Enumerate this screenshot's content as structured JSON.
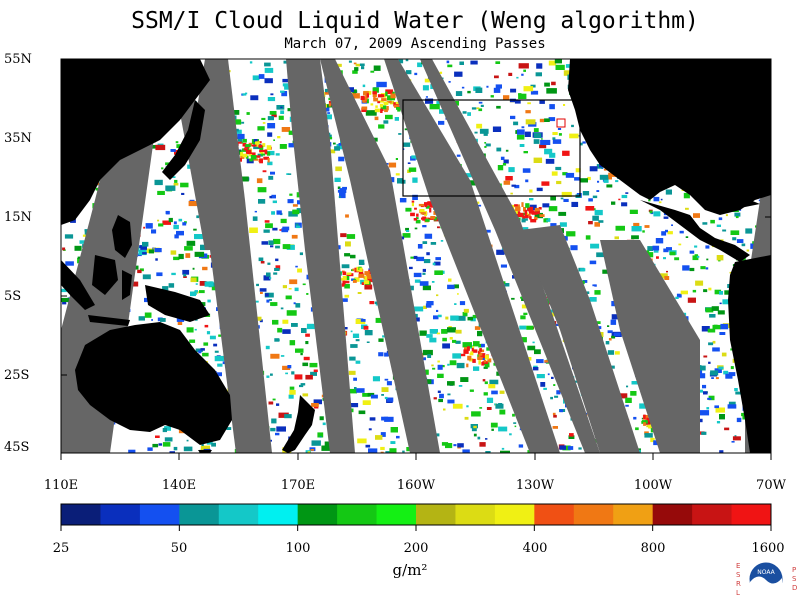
{
  "title": "SSM/I Cloud Liquid Water (Weng algorithm)",
  "subtitle": "March 07, 2009  Ascending Passes",
  "lat_labels": [
    "55N",
    "35N",
    "15N",
    "5S",
    "25S",
    "45S"
  ],
  "lon_labels": [
    "110E",
    "140E",
    "170E",
    "160W",
    "130W",
    "100W",
    "70W"
  ],
  "colorbar": {
    "colors": [
      "#0a1e78",
      "#0a2fbd",
      "#1450f0",
      "#0a9696",
      "#14c8c8",
      "#00f0f0",
      "#009614",
      "#14c814",
      "#14f014",
      "#b4b414",
      "#dcdc14",
      "#f0f014",
      "#f05014",
      "#f07814",
      "#f0a014",
      "#960a0a",
      "#c81414",
      "#f01414"
    ],
    "tick_labels": [
      "25",
      "50",
      "100",
      "200",
      "400",
      "800",
      "1600"
    ],
    "units": "g/m²"
  },
  "logo": {
    "left_text": "ESRL",
    "right_text": "PSD",
    "center_text": "NOAA"
  },
  "colors": {
    "land": "#000000",
    "swath_gap": "#666666",
    "no_cloud": "#ffffff",
    "box": "#000000",
    "marker": "#e00000"
  }
}
